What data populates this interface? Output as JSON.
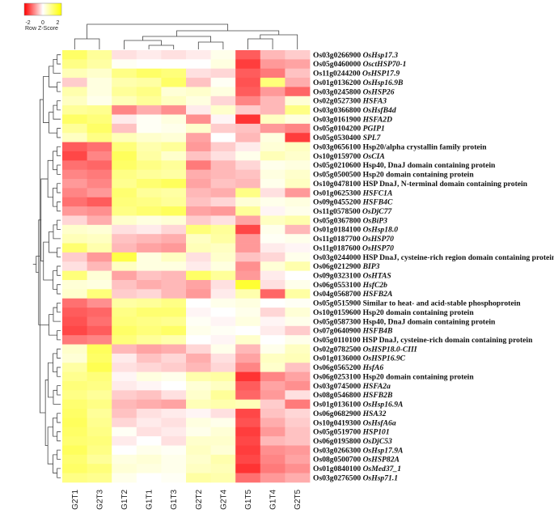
{
  "chart_data": {
    "type": "heatmap",
    "title": "",
    "xlabel": "",
    "ylabel": "",
    "color_key": {
      "title": "Row Z-Score",
      "ticks": [
        -2,
        0,
        2
      ],
      "range": [
        -2.5,
        2.5
      ],
      "low_color": "#ff0000",
      "mid_color": "#ffffff",
      "high_color": "#ffff00"
    },
    "columns": [
      "G2T1",
      "G2T3",
      "G1T2",
      "G1T1",
      "G1T3",
      "G2T2",
      "G2T4",
      "G1T5",
      "G1T4",
      "G2T5"
    ],
    "rows": [
      {
        "id": "Os03g0266900",
        "name": "OsHsp17.3",
        "italic": true,
        "values": [
          1.5,
          1.0,
          -0.3,
          -0.2,
          -0.3,
          -0.2,
          0.2,
          -1.6,
          -0.7,
          -0.5
        ]
      },
      {
        "id": "Os05g0460000",
        "name": "OsctHSP70-1",
        "italic": true,
        "values": [
          1.2,
          0.9,
          0.1,
          0.0,
          0.0,
          0.0,
          0.3,
          -1.9,
          -1.0,
          -0.9
        ]
      },
      {
        "id": "Os11g0244200",
        "name": "OsHSP17.9",
        "italic": true,
        "values": [
          0.7,
          0.5,
          1.2,
          1.5,
          1.3,
          -0.3,
          -0.4,
          -1.6,
          -1.3,
          -0.6
        ]
      },
      {
        "id": "Os01g0136200",
        "name": "OsHsp16.9B",
        "italic": true,
        "values": [
          -0.5,
          0.3,
          0.8,
          0.9,
          1.5,
          -0.6,
          0.1,
          -1.7,
          1.3,
          -0.8
        ]
      },
      {
        "id": "Os03g0245800",
        "name": "OsHSP26",
        "italic": true,
        "values": [
          0.8,
          0.3,
          1.0,
          1.2,
          0.4,
          0.5,
          0.3,
          -1.6,
          -1.0,
          -1.5
        ]
      },
      {
        "id": "Os02g0527300",
        "name": "HSFA3",
        "italic": true,
        "values": [
          0.6,
          0.2,
          0.7,
          1.0,
          0.6,
          0.3,
          -0.4,
          -1.2,
          -0.7,
          0.4
        ]
      },
      {
        "id": "Os03g0366800",
        "name": "OsHsfB4d",
        "italic": true,
        "values": [
          1.0,
          1.1,
          -1.2,
          -0.8,
          -1.1,
          -0.2,
          0.5,
          -0.5,
          -0.7,
          1.2
        ]
      },
      {
        "id": "Os03g0161900",
        "name": "HSFA2D",
        "italic": true,
        "values": [
          1.5,
          1.3,
          -0.2,
          0.1,
          0.3,
          -1.1,
          -0.1,
          -2.0,
          0.6,
          0.3
        ]
      },
      {
        "id": "Os05g0104200",
        "name": "PGIP1",
        "italic": true,
        "values": [
          1.0,
          1.5,
          -0.6,
          0.1,
          0.2,
          0.5,
          -0.5,
          -0.6,
          -1.0,
          -1.2
        ]
      },
      {
        "id": "Os05g0530400",
        "name": "SPL7",
        "italic": true,
        "values": [
          0.6,
          1.2,
          0.7,
          0.5,
          0.4,
          -0.9,
          0.0,
          -0.7,
          0.3,
          -1.9
        ]
      },
      {
        "id": "Os03g0656100",
        "name": "Hsp20/alpha crystallin family protein",
        "italic": false,
        "values": [
          -1.6,
          -1.4,
          1.3,
          0.8,
          1.0,
          -1.0,
          -0.5,
          -0.2,
          0.4,
          0.6
        ]
      },
      {
        "id": "Os10g0159700",
        "name": "OsCIA",
        "italic": true,
        "values": [
          -1.8,
          -1.2,
          1.6,
          0.9,
          0.5,
          -0.6,
          -0.3,
          0.2,
          0.7,
          0.5
        ]
      },
      {
        "id": "Os05g0210600",
        "name": "Hsp40, DnaJ domain containing protein",
        "italic": false,
        "values": [
          -1.4,
          -1.5,
          1.5,
          1.2,
          1.0,
          -1.3,
          -0.7,
          -0.4,
          0.2,
          0.3
        ]
      },
      {
        "id": "Os05g0500500",
        "name": "Hsp20 domain containing protein",
        "italic": false,
        "values": [
          -1.2,
          -1.3,
          1.2,
          1.0,
          0.9,
          -0.8,
          -0.7,
          -0.6,
          0.3,
          0.5
        ]
      },
      {
        "id": "Os10g0478100",
        "name": "HSP DnaJ, N-terminal domain containing protein",
        "italic": false,
        "values": [
          -1.0,
          -1.2,
          1.1,
          1.4,
          1.6,
          -0.9,
          -0.6,
          -0.7,
          0.2,
          0.6
        ]
      },
      {
        "id": "Os01g0625300",
        "name": "HSFC1A",
        "italic": true,
        "values": [
          -1.2,
          -1.0,
          1.4,
          1.0,
          0.9,
          -0.7,
          -0.8,
          1.2,
          -0.3,
          -1.0
        ]
      },
      {
        "id": "Os09g0455200",
        "name": "HSFB4C",
        "italic": true,
        "values": [
          -1.4,
          -1.6,
          1.3,
          1.2,
          1.0,
          -0.6,
          -0.4,
          0.4,
          0.2,
          0.3
        ]
      },
      {
        "id": "Os11g0578500",
        "name": "OsDjC77",
        "italic": true,
        "values": [
          -1.0,
          -1.1,
          1.2,
          1.4,
          1.6,
          -0.9,
          -1.0,
          1.0,
          -0.1,
          0.2
        ]
      },
      {
        "id": "Os05g0367800",
        "name": "OsBiP3",
        "italic": true,
        "values": [
          -0.4,
          -0.8,
          0.5,
          0.3,
          0.4,
          -0.5,
          -0.3,
          -0.9,
          0.6,
          0.8
        ]
      },
      {
        "id": "Os01g0184100",
        "name": "OsHsp18.0",
        "italic": true,
        "values": [
          0.5,
          0.4,
          -0.3,
          -0.2,
          -0.4,
          1.3,
          1.0,
          -1.8,
          0.2,
          -0.7
        ]
      },
      {
        "id": "Os11g0187700",
        "name": "OsHSP70",
        "italic": true,
        "values": [
          0.7,
          0.6,
          -0.6,
          -0.7,
          -0.8,
          0.6,
          0.9,
          -1.0,
          0.1,
          0.2
        ]
      },
      {
        "id": "Os11g0187600",
        "name": "OsHSP70",
        "italic": true,
        "values": [
          1.4,
          0.8,
          -0.7,
          -0.9,
          -1.0,
          0.7,
          0.6,
          -1.0,
          -0.2,
          -0.1
        ]
      },
      {
        "id": "Os03g0244000",
        "name": "HSP DnaJ, cysteine-rich region domain containing protein",
        "italic": false,
        "values": [
          -0.5,
          -1.0,
          1.8,
          0.3,
          0.6,
          -0.3,
          0.5,
          -0.6,
          -0.4,
          0.2
        ]
      },
      {
        "id": "Os06g0212900",
        "name": "BIP3",
        "italic": true,
        "values": [
          -0.3,
          -0.7,
          0.6,
          0.3,
          0.3,
          -0.2,
          0.3,
          -1.1,
          0.4,
          0.8
        ]
      },
      {
        "id": "Os09g0323100",
        "name": "OsHTAS",
        "italic": true,
        "values": [
          1.3,
          0.4,
          -0.9,
          -0.6,
          -0.7,
          1.5,
          1.0,
          -1.0,
          -0.2,
          0.0
        ]
      },
      {
        "id": "Os06g0553100",
        "name": "HsfC2b",
        "italic": true,
        "values": [
          0.4,
          0.3,
          -0.6,
          -0.8,
          -0.7,
          -0.9,
          -0.3,
          2.0,
          -0.3,
          0.2
        ]
      },
      {
        "id": "Os04g0568700",
        "name": "HSFB2A",
        "italic": true,
        "values": [
          0.5,
          1.3,
          -0.5,
          -0.4,
          -0.7,
          -1.0,
          -0.2,
          0.8,
          -1.5,
          0.9
        ]
      },
      {
        "id": "Os05g0515900",
        "name": "Similar to heat- and acid-stable phosphoprotein",
        "italic": false,
        "values": [
          -1.4,
          -1.1,
          0.9,
          1.0,
          1.2,
          0.0,
          0.2,
          0.3,
          0.0,
          0.1
        ]
      },
      {
        "id": "Os10g0159600",
        "name": "Hsp20 domain containing protein",
        "italic": false,
        "values": [
          -1.6,
          -1.5,
          1.2,
          1.4,
          1.4,
          -0.1,
          0.0,
          0.2,
          -0.4,
          0.4
        ]
      },
      {
        "id": "Os05g0587300",
        "name": "Hsp40, DnaJ domain containing protein",
        "italic": false,
        "values": [
          -1.7,
          -1.4,
          1.3,
          1.2,
          1.1,
          0.1,
          -0.1,
          0.3,
          -0.1,
          0.2
        ]
      },
      {
        "id": "Os07g0640900",
        "name": "HSFB4B",
        "italic": true,
        "values": [
          -1.8,
          -1.6,
          1.5,
          1.3,
          1.5,
          0.2,
          0.1,
          0.0,
          -0.2,
          -0.5
        ]
      },
      {
        "id": "Os05g0110100",
        "name": "HSP DnaJ, cysteine-rich domain containing protein",
        "italic": false,
        "values": [
          -1.3,
          -1.2,
          1.3,
          1.0,
          0.8,
          0.0,
          -0.1,
          0.5,
          0.0,
          0.2
        ]
      },
      {
        "id": "Os02g0782500",
        "name": "OsHSP18.0-CIII",
        "italic": true,
        "values": [
          0.5,
          1.6,
          -0.7,
          -0.9,
          -0.8,
          -0.4,
          0.2,
          -0.7,
          0.2,
          0.6
        ]
      },
      {
        "id": "Os01g0136000",
        "name": "OsHSP16.9C",
        "italic": true,
        "values": [
          0.4,
          1.5,
          -0.2,
          -0.6,
          -0.4,
          -0.8,
          -0.3,
          -0.9,
          0.6,
          0.7
        ]
      },
      {
        "id": "Os06g0565200",
        "name": "HsfA6",
        "italic": true,
        "values": [
          0.9,
          1.7,
          -0.3,
          -0.4,
          -0.5,
          -0.7,
          -0.4,
          -1.2,
          0.5,
          -0.6
        ]
      },
      {
        "id": "Os06g0253100",
        "name": "Hsp20 domain containing protein",
        "italic": false,
        "values": [
          1.1,
          1.3,
          -0.1,
          0.3,
          0.2,
          0.8,
          0.9,
          -2.0,
          -1.2,
          -0.9
        ]
      },
      {
        "id": "Os03g0745000",
        "name": "HSFA2a",
        "italic": true,
        "values": [
          1.3,
          1.2,
          -0.2,
          -0.1,
          0.0,
          0.4,
          0.6,
          -1.6,
          -0.9,
          -1.1
        ]
      },
      {
        "id": "Os08g0546800",
        "name": "HSFB2B",
        "italic": true,
        "values": [
          1.2,
          1.0,
          -0.5,
          -0.6,
          -0.3,
          0.5,
          1.0,
          -1.5,
          -1.0,
          -0.3
        ]
      },
      {
        "id": "Os01g0136100",
        "name": "OsHsp16.9A",
        "italic": true,
        "values": [
          1.4,
          1.2,
          -0.7,
          -0.8,
          -0.9,
          0.7,
          0.8,
          0.7,
          -0.5,
          -1.3
        ]
      },
      {
        "id": "Os06g0682900",
        "name": "HSA32",
        "italic": true,
        "values": [
          1.5,
          1.0,
          -0.6,
          -0.3,
          -0.2,
          -0.1,
          -0.3,
          -1.8,
          -0.6,
          -0.4
        ]
      },
      {
        "id": "Os10g0419300",
        "name": "OsHsfA6a",
        "italic": true,
        "values": [
          1.6,
          1.1,
          -0.4,
          -0.2,
          -0.3,
          0.3,
          0.2,
          -1.7,
          -0.8,
          -0.5
        ]
      },
      {
        "id": "Os05g0519700",
        "name": "HSP101",
        "italic": true,
        "values": [
          1.5,
          1.2,
          0.1,
          -0.3,
          -0.2,
          0.2,
          0.4,
          -1.9,
          -1.0,
          -0.6
        ]
      },
      {
        "id": "Os06g0195800",
        "name": "OsDjC53",
        "italic": true,
        "values": [
          1.4,
          1.3,
          -0.2,
          0.0,
          -0.3,
          0.5,
          0.5,
          -1.8,
          -0.7,
          -0.6
        ]
      },
      {
        "id": "Os03g0266300",
        "name": "OsHsp17.9A",
        "italic": true,
        "values": [
          1.6,
          1.2,
          0.0,
          0.2,
          0.1,
          0.6,
          0.4,
          -1.9,
          -1.1,
          -1.0
        ]
      },
      {
        "id": "Os08g0500700",
        "name": "OsHSP82A",
        "italic": true,
        "values": [
          1.4,
          1.0,
          0.3,
          0.4,
          0.2,
          0.5,
          0.8,
          -1.8,
          -1.2,
          -0.9
        ]
      },
      {
        "id": "Os01g0840100",
        "name": "OsMed37_1",
        "italic": true,
        "values": [
          1.5,
          1.3,
          0.4,
          0.3,
          0.2,
          0.6,
          0.7,
          -2.0,
          -1.3,
          -1.1
        ]
      },
      {
        "id": "Os03g0276500",
        "name": "OsHsp71.1",
        "italic": true,
        "values": [
          1.2,
          1.1,
          0.2,
          0.0,
          0.1,
          0.9,
          0.8,
          -1.4,
          -1.0,
          -0.8
        ]
      }
    ]
  }
}
